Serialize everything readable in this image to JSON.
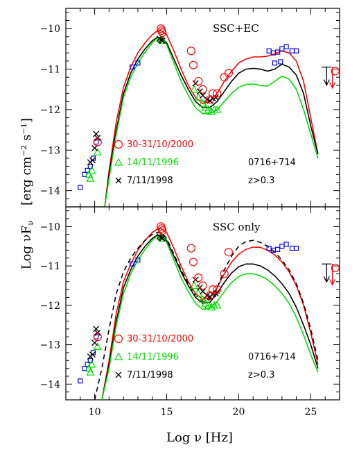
{
  "chart_data": [
    {
      "type": "line",
      "panel_label": "SSC+EC",
      "source_label": "0716+714",
      "redshift_label": "z>0.3",
      "xlim": [
        8,
        27
      ],
      "ylim": [
        -14.4,
        -9.5
      ],
      "xticks": [
        10,
        15,
        20,
        25
      ],
      "yticks": [
        -10,
        -11,
        -12,
        -13,
        -14
      ],
      "legend": [
        {
          "label": "30-31/10/2000",
          "marker": "circle",
          "color": "#ff0000"
        },
        {
          "label": "14/11/1996",
          "marker": "triangle",
          "color": "#00dd00"
        },
        {
          "label": "7/11/1998",
          "marker": "cross",
          "color": "#000000"
        }
      ],
      "series": [
        {
          "color": "#ff0000",
          "x": [
            10.7,
            11.0,
            11.5,
            12.0,
            12.5,
            13.0,
            13.5,
            14.0,
            14.3,
            14.6,
            15.0,
            15.5,
            16.0,
            16.5,
            17.0,
            17.5,
            18.0,
            18.5,
            19.0,
            19.5,
            20.0,
            20.5,
            21.0,
            21.5,
            22.0,
            22.5,
            23.0,
            23.5,
            24.0,
            24.5,
            25.0,
            25.5
          ],
          "y": [
            -14.4,
            -13.5,
            -12.3,
            -11.45,
            -10.95,
            -10.6,
            -10.35,
            -10.15,
            -10.07,
            -10.05,
            -10.15,
            -10.55,
            -11.0,
            -11.4,
            -11.7,
            -11.85,
            -11.8,
            -11.6,
            -11.3,
            -11.05,
            -10.85,
            -10.75,
            -10.7,
            -10.7,
            -10.68,
            -10.62,
            -10.55,
            -10.6,
            -10.8,
            -11.3,
            -12.2,
            -13.1
          ]
        },
        {
          "color": "#000000",
          "x": [
            10.7,
            11.0,
            11.5,
            12.0,
            12.5,
            13.0,
            13.5,
            14.0,
            14.3,
            14.6,
            15.0,
            15.5,
            16.0,
            16.5,
            17.0,
            17.5,
            18.0,
            18.5,
            19.0,
            19.5,
            20.0,
            20.5,
            21.0,
            21.5,
            22.0,
            22.5,
            23.0,
            23.5,
            24.0,
            24.5,
            25.0,
            25.5
          ],
          "y": [
            -14.4,
            -13.6,
            -12.5,
            -11.6,
            -11.1,
            -10.75,
            -10.5,
            -10.3,
            -10.23,
            -10.22,
            -10.35,
            -10.75,
            -11.15,
            -11.5,
            -11.8,
            -11.95,
            -11.95,
            -11.8,
            -11.55,
            -11.3,
            -11.1,
            -11.0,
            -10.98,
            -11.0,
            -11.05,
            -11.0,
            -10.88,
            -10.95,
            -11.15,
            -11.6,
            -12.4,
            -13.1
          ]
        },
        {
          "color": "#00dd00",
          "x": [
            10.7,
            11.0,
            11.5,
            12.0,
            12.5,
            13.0,
            13.5,
            14.0,
            14.3,
            14.6,
            15.0,
            15.5,
            16.0,
            16.5,
            17.0,
            17.5,
            18.0,
            18.5,
            19.0,
            19.5,
            20.0,
            20.5,
            21.0,
            21.5,
            22.0,
            22.5,
            23.0,
            23.5,
            24.0,
            24.5,
            25.0,
            25.5
          ],
          "y": [
            -14.4,
            -13.7,
            -12.6,
            -11.7,
            -11.2,
            -10.85,
            -10.58,
            -10.35,
            -10.25,
            -10.25,
            -10.4,
            -10.85,
            -11.3,
            -11.65,
            -11.95,
            -12.1,
            -12.1,
            -12.0,
            -11.8,
            -11.6,
            -11.45,
            -11.38,
            -11.37,
            -11.4,
            -11.42,
            -11.3,
            -11.17,
            -11.25,
            -11.5,
            -12.0,
            -12.6,
            -13.2
          ]
        }
      ],
      "markers": {
        "circle_red": {
          "x": [
            10.2,
            14.6,
            14.65,
            14.7,
            16.7,
            16.85,
            17.2,
            17.5,
            18.0,
            18.2,
            18.5,
            19.0,
            19.3,
            26.7
          ],
          "y": [
            -12.8,
            -10.0,
            -10.05,
            -10.1,
            -10.55,
            -10.9,
            -11.3,
            -11.5,
            -11.75,
            -11.6,
            -11.6,
            -11.2,
            -11.1,
            -11.05
          ]
        },
        "triangle_green": {
          "x": [
            9.6,
            9.7,
            9.8,
            10.2,
            14.6,
            14.7,
            16.9,
            17.2,
            17.5,
            17.7,
            17.9,
            18.1,
            18.3,
            18.5
          ],
          "y": [
            -13.6,
            -13.7,
            -13.5,
            -13.05,
            -10.25,
            -10.3,
            -11.5,
            -11.7,
            -11.85,
            -11.95,
            -12.0,
            -12.05,
            -12.0,
            -12.0
          ]
        },
        "cross_black": {
          "x": [
            9.7,
            9.85,
            10.0,
            10.1,
            10.2,
            14.5,
            14.6,
            14.7,
            17.0,
            17.3,
            17.5,
            17.8,
            18.0,
            18.2,
            18.4
          ],
          "y": [
            -13.3,
            -13.25,
            -12.95,
            -12.6,
            -12.7,
            -10.25,
            -10.28,
            -10.3,
            -11.35,
            -11.55,
            -11.65,
            -11.75,
            -11.78,
            -11.72,
            -11.7
          ]
        },
        "square_blue": {
          "x": [
            9.0,
            9.3,
            9.5,
            9.7,
            9.9,
            10.1,
            12.6,
            13.0,
            22.1,
            22.4,
            22.7,
            23.0,
            23.3,
            23.7,
            24.0,
            22.5,
            22.9
          ],
          "y": [
            -13.92,
            -13.6,
            -13.5,
            -13.4,
            -13.2,
            -12.8,
            -10.95,
            -10.85,
            -10.55,
            -10.6,
            -10.58,
            -10.5,
            -10.45,
            -10.55,
            -10.55,
            -10.85,
            -10.82
          ]
        },
        "upper_limit_black": {
          "x": 26.1,
          "y": -10.95
        },
        "upper_limit_red": {
          "x": 26.5,
          "y": -10.95
        }
      }
    },
    {
      "type": "line",
      "panel_label": "SSC only",
      "source_label": "0716+714",
      "redshift_label": "z>0.3",
      "xlim": [
        8,
        27
      ],
      "ylim": [
        -14.4,
        -9.5
      ],
      "xticks": [
        10,
        15,
        20,
        25
      ],
      "yticks": [
        -10,
        -11,
        -12,
        -13,
        -14
      ],
      "legend": [
        {
          "label": "30-31/10/2000",
          "marker": "circle",
          "color": "#ff0000"
        },
        {
          "label": "14/11/1996",
          "marker": "triangle",
          "color": "#00dd00"
        },
        {
          "label": "7/11/1998",
          "marker": "cross",
          "color": "#000000"
        }
      ],
      "series": [
        {
          "color": "#ff0000",
          "x": [
            10.5,
            11.0,
            11.5,
            12.0,
            12.5,
            13.0,
            13.5,
            14.0,
            14.3,
            14.6,
            15.0,
            15.5,
            16.0,
            16.5,
            17.0,
            17.5,
            18.0,
            18.5,
            19.0,
            19.5,
            20.0,
            20.5,
            21.0,
            21.5,
            22.0,
            22.5,
            23.0,
            23.5,
            24.0,
            24.5,
            25.0,
            25.5
          ],
          "y": [
            -14.4,
            -13.4,
            -12.2,
            -11.4,
            -10.95,
            -10.6,
            -10.35,
            -10.15,
            -10.07,
            -10.05,
            -10.15,
            -10.55,
            -11.0,
            -11.4,
            -11.7,
            -11.85,
            -11.8,
            -11.55,
            -11.2,
            -10.9,
            -10.7,
            -10.58,
            -10.52,
            -10.53,
            -10.6,
            -10.72,
            -10.9,
            -11.15,
            -11.5,
            -12.0,
            -12.7,
            -13.5
          ]
        },
        {
          "color": "#000000",
          "x": [
            10.5,
            11.0,
            11.5,
            12.0,
            12.5,
            13.0,
            13.5,
            14.0,
            14.3,
            14.6,
            15.0,
            15.5,
            16.0,
            16.5,
            17.0,
            17.5,
            18.0,
            18.5,
            19.0,
            19.5,
            20.0,
            20.5,
            21.0,
            21.5,
            22.0,
            22.5,
            23.0,
            23.5,
            24.0,
            24.5,
            25.0,
            25.5
          ],
          "y": [
            -14.4,
            -13.5,
            -12.4,
            -11.55,
            -11.1,
            -10.75,
            -10.5,
            -10.3,
            -10.23,
            -10.22,
            -10.35,
            -10.75,
            -11.15,
            -11.5,
            -11.8,
            -11.95,
            -11.92,
            -11.7,
            -11.42,
            -11.18,
            -11.02,
            -10.95,
            -10.95,
            -11.0,
            -11.1,
            -11.25,
            -11.45,
            -11.7,
            -12.05,
            -12.5,
            -13.0,
            -13.6
          ]
        },
        {
          "color": "#00dd00",
          "x": [
            10.5,
            11.0,
            11.5,
            12.0,
            12.5,
            13.0,
            13.5,
            14.0,
            14.3,
            14.6,
            15.0,
            15.5,
            16.0,
            16.5,
            17.0,
            17.5,
            18.0,
            18.5,
            19.0,
            19.5,
            20.0,
            20.5,
            21.0,
            21.5,
            22.0,
            22.5,
            23.0,
            23.5,
            24.0,
            24.5,
            25.0,
            25.5
          ],
          "y": [
            -14.4,
            -13.6,
            -12.5,
            -11.7,
            -11.2,
            -10.85,
            -10.58,
            -10.35,
            -10.25,
            -10.25,
            -10.4,
            -10.85,
            -11.3,
            -11.65,
            -11.95,
            -12.1,
            -12.08,
            -11.9,
            -11.65,
            -11.42,
            -11.27,
            -11.2,
            -11.2,
            -11.25,
            -11.35,
            -11.5,
            -11.7,
            -11.95,
            -12.3,
            -12.75,
            -13.25,
            -13.7
          ]
        },
        {
          "color": "#000000",
          "dashed": true,
          "x": [
            10.0,
            10.5,
            11.0,
            11.5,
            12.0,
            12.5,
            13.0,
            13.5,
            14.0,
            14.3,
            14.6,
            15.0,
            15.5,
            16.0,
            16.5,
            17.0,
            17.5,
            18.0,
            18.5,
            19.0,
            19.5,
            20.0,
            20.5,
            21.0,
            21.5,
            22.0,
            22.5,
            23.0,
            23.5,
            24.0,
            24.5,
            25.0,
            25.5
          ],
          "y": [
            -14.4,
            -13.6,
            -12.6,
            -11.7,
            -11.15,
            -10.8,
            -10.55,
            -10.35,
            -10.2,
            -10.15,
            -10.15,
            -10.3,
            -10.7,
            -11.1,
            -11.45,
            -11.75,
            -11.9,
            -11.85,
            -11.55,
            -11.1,
            -10.75,
            -10.5,
            -10.38,
            -10.35,
            -10.4,
            -10.5,
            -10.65,
            -10.85,
            -11.1,
            -11.45,
            -11.95,
            -12.6,
            -13.4
          ]
        }
      ],
      "markers": {
        "circle_red": {
          "x": [
            10.2,
            14.6,
            14.65,
            14.7,
            16.7,
            16.85,
            17.2,
            17.5,
            18.0,
            18.2,
            18.5,
            19.0,
            19.3,
            26.7
          ],
          "y": [
            -12.8,
            -10.0,
            -10.05,
            -10.1,
            -10.55,
            -10.9,
            -11.3,
            -11.5,
            -11.75,
            -11.6,
            -11.6,
            -11.2,
            -10.65,
            -11.05
          ]
        },
        "triangle_green": {
          "x": [
            9.6,
            9.7,
            9.8,
            10.2,
            14.6,
            14.7,
            16.9,
            17.2,
            17.5,
            17.7,
            17.9,
            18.1,
            18.3,
            18.5
          ],
          "y": [
            -13.6,
            -13.7,
            -13.5,
            -13.05,
            -10.25,
            -10.3,
            -11.5,
            -11.7,
            -11.85,
            -11.95,
            -12.0,
            -12.05,
            -12.0,
            -12.0
          ]
        },
        "cross_black": {
          "x": [
            9.7,
            9.85,
            10.0,
            10.1,
            10.2,
            14.5,
            14.6,
            14.7,
            17.0,
            17.3,
            17.5,
            17.8,
            18.0,
            18.2,
            18.4
          ],
          "y": [
            -13.3,
            -13.25,
            -12.95,
            -12.6,
            -12.7,
            -10.25,
            -10.28,
            -10.3,
            -11.35,
            -11.55,
            -11.65,
            -11.75,
            -11.78,
            -11.72,
            -11.7
          ]
        },
        "square_blue": {
          "x": [
            9.0,
            9.3,
            9.5,
            9.7,
            9.9,
            10.1,
            12.6,
            13.0,
            22.1,
            22.4,
            22.7,
            23.0,
            23.3,
            23.7,
            24.0
          ],
          "y": [
            -13.92,
            -13.6,
            -13.5,
            -13.4,
            -13.2,
            -12.8,
            -10.95,
            -10.85,
            -10.55,
            -10.6,
            -10.58,
            -10.5,
            -10.45,
            -10.55,
            -10.55
          ]
        },
        "upper_limit_black": {
          "x": 26.1,
          "y": -10.95
        },
        "upper_limit_red": {
          "x": 26.5,
          "y": -10.95
        }
      }
    }
  ],
  "axes": {
    "xlabel": "Log ν [Hz]",
    "ylabel": "Log νF",
    "ylabel_sub": "ν",
    "ylabel_units": "[erg cm⁻² s⁻¹]"
  }
}
